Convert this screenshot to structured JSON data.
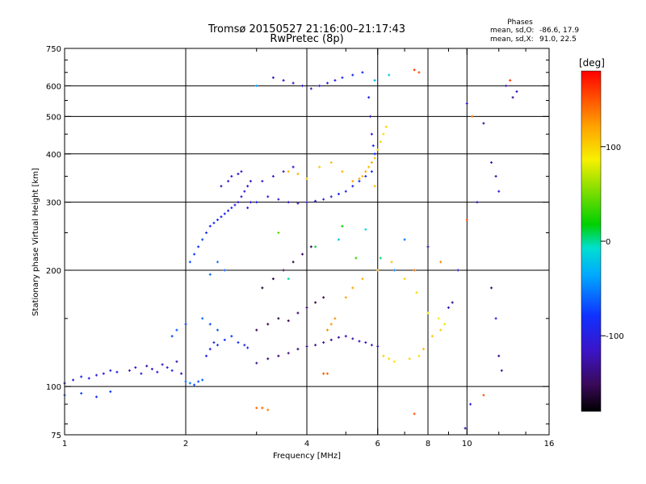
{
  "chart_data": {
    "type": "scatter",
    "title": "Tromsø 20150527 21:16:00–21:17:43",
    "subtitle": "RwPretec (8p)",
    "xlabel": "Frequency [MHz]",
    "ylabel": "Stationary phase Virtual Height [km]",
    "x_scale": "log",
    "y_scale": "log",
    "xlim": [
      1,
      16
    ],
    "ylim": [
      75,
      750
    ],
    "x_ticks": [
      1,
      2,
      4,
      6,
      8,
      10,
      16
    ],
    "x_minor_ticks": [
      3,
      5,
      7,
      9,
      12,
      14
    ],
    "y_ticks": [
      75,
      100,
      200,
      300,
      400,
      500,
      600,
      750
    ],
    "y_minor_ticks": [
      80,
      90,
      150,
      250,
      350,
      450,
      550,
      650,
      700
    ],
    "x_gridlines": [
      2,
      4,
      6,
      8,
      10
    ],
    "y_gridlines": [
      100,
      200,
      300,
      400,
      500,
      600
    ],
    "grid": true,
    "stats": {
      "heading": "Phases",
      "o_label": "mean, sd,O:",
      "o_values": "-86.6, 17.9",
      "x_label": "mean, sd,X:",
      "x_values": " 91.0, 22.5"
    },
    "colorbar": {
      "label": "[deg]",
      "ticks": [
        100,
        0,
        -100
      ],
      "range": [
        -180,
        180
      ],
      "colormap": "rainbow (black-purple-blue-cyan-green-yellow-orange-red)",
      "placement": "right"
    },
    "series": [
      {
        "name": "",
        "points": [
          [
            1.0,
            102,
            -105
          ],
          [
            1.05,
            104,
            -100
          ],
          [
            1.1,
            106,
            -95
          ],
          [
            1.15,
            105,
            -102
          ],
          [
            1.2,
            107,
            -98
          ],
          [
            1.25,
            108,
            -110
          ],
          [
            1.3,
            110,
            -104
          ],
          [
            1.35,
            109,
            -96
          ],
          [
            1.0,
            95,
            -60
          ],
          [
            1.1,
            96,
            -70
          ],
          [
            1.2,
            94,
            -80
          ],
          [
            1.3,
            97,
            -75
          ],
          [
            1.45,
            110,
            -120
          ],
          [
            1.5,
            112,
            -110
          ],
          [
            1.55,
            108,
            -100
          ],
          [
            1.6,
            113,
            -125
          ],
          [
            1.65,
            111,
            -115
          ],
          [
            1.7,
            109,
            -105
          ],
          [
            1.75,
            114,
            -118
          ],
          [
            1.8,
            112,
            -108
          ],
          [
            1.85,
            110,
            -95
          ],
          [
            1.9,
            116,
            -122
          ],
          [
            1.95,
            108,
            -112
          ],
          [
            2.0,
            103,
            -60
          ],
          [
            2.05,
            102,
            -55
          ],
          [
            2.1,
            101,
            -70
          ],
          [
            2.15,
            103,
            -65
          ],
          [
            2.2,
            104,
            -62
          ],
          [
            2.25,
            120,
            -100
          ],
          [
            2.3,
            125,
            -95
          ],
          [
            2.35,
            130,
            -90
          ],
          [
            2.4,
            128,
            -85
          ],
          [
            2.5,
            132,
            -80
          ],
          [
            2.6,
            135,
            -75
          ],
          [
            2.7,
            130,
            -85
          ],
          [
            2.8,
            128,
            -90
          ],
          [
            2.85,
            126,
            -92
          ],
          [
            2.05,
            210,
            -70
          ],
          [
            2.1,
            220,
            -75
          ],
          [
            2.15,
            230,
            -80
          ],
          [
            2.2,
            240,
            -72
          ],
          [
            2.25,
            250,
            -85
          ],
          [
            2.3,
            260,
            -88
          ],
          [
            2.35,
            265,
            -90
          ],
          [
            2.4,
            270,
            -82
          ],
          [
            2.45,
            275,
            -95
          ],
          [
            2.5,
            280,
            -92
          ],
          [
            2.55,
            285,
            -98
          ],
          [
            2.6,
            290,
            -100
          ],
          [
            2.65,
            295,
            -104
          ],
          [
            2.7,
            300,
            -110
          ],
          [
            2.75,
            310,
            -115
          ],
          [
            2.8,
            320,
            -112
          ],
          [
            2.85,
            330,
            -118
          ],
          [
            2.9,
            340,
            -120
          ],
          [
            2.9,
            300,
            -105
          ],
          [
            2.85,
            290,
            -110
          ],
          [
            2.2,
            150,
            -60
          ],
          [
            2.3,
            145,
            -70
          ],
          [
            2.4,
            140,
            -65
          ],
          [
            1.85,
            135,
            -70
          ],
          [
            1.9,
            140,
            -65
          ],
          [
            2.0,
            145,
            -75
          ],
          [
            2.5,
            200,
            -60
          ],
          [
            2.4,
            210,
            -55
          ],
          [
            2.3,
            195,
            -62
          ],
          [
            2.6,
            350,
            -110
          ],
          [
            2.45,
            330,
            -115
          ],
          [
            2.55,
            340,
            -108
          ],
          [
            2.7,
            355,
            -120
          ],
          [
            2.75,
            360,
            -112
          ],
          [
            3.0,
            115,
            -130
          ],
          [
            3.2,
            118,
            -135
          ],
          [
            3.4,
            120,
            -140
          ],
          [
            3.6,
            122,
            -138
          ],
          [
            3.8,
            125,
            -142
          ],
          [
            4.0,
            127,
            -136
          ],
          [
            4.2,
            128,
            -134
          ],
          [
            4.4,
            130,
            -130
          ],
          [
            4.6,
            132,
            -128
          ],
          [
            4.8,
            134,
            -125
          ],
          [
            5.0,
            135,
            -122
          ],
          [
            5.2,
            133,
            -120
          ],
          [
            5.4,
            131,
            -118
          ],
          [
            5.6,
            130,
            -115
          ],
          [
            5.8,
            128,
            -112
          ],
          [
            6.0,
            127,
            -110
          ],
          [
            3.0,
            140,
            -150
          ],
          [
            3.2,
            145,
            -155
          ],
          [
            3.4,
            150,
            -160
          ],
          [
            3.6,
            148,
            -150
          ],
          [
            3.8,
            155,
            -145
          ],
          [
            4.0,
            160,
            -140
          ],
          [
            4.2,
            165,
            -152
          ],
          [
            4.4,
            170,
            -148
          ],
          [
            3.1,
            180,
            -160
          ],
          [
            3.3,
            190,
            -155
          ],
          [
            3.5,
            200,
            -150
          ],
          [
            3.7,
            210,
            -158
          ],
          [
            3.9,
            220,
            -145
          ],
          [
            4.1,
            230,
            -150
          ],
          [
            3.0,
            300,
            -100
          ],
          [
            3.2,
            310,
            -105
          ],
          [
            3.4,
            305,
            -110
          ],
          [
            3.6,
            300,
            -115
          ],
          [
            3.8,
            298,
            -118
          ],
          [
            4.0,
            300,
            -112
          ],
          [
            4.2,
            302,
            -108
          ],
          [
            4.4,
            305,
            -104
          ],
          [
            4.6,
            310,
            -100
          ],
          [
            4.8,
            315,
            -96
          ],
          [
            5.0,
            320,
            -92
          ],
          [
            5.2,
            330,
            -90
          ],
          [
            5.4,
            340,
            -88
          ],
          [
            5.6,
            350,
            -85
          ],
          [
            5.8,
            360,
            -82
          ],
          [
            3.1,
            340,
            -110
          ],
          [
            3.3,
            350,
            -115
          ],
          [
            3.5,
            360,
            -112
          ],
          [
            3.7,
            370,
            -108
          ],
          [
            3.3,
            630,
            -120
          ],
          [
            3.5,
            620,
            -115
          ],
          [
            3.7,
            610,
            -110
          ],
          [
            3.9,
            600,
            -112
          ],
          [
            4.1,
            590,
            -108
          ],
          [
            4.3,
            600,
            -104
          ],
          [
            4.5,
            610,
            -100
          ],
          [
            4.7,
            620,
            -96
          ],
          [
            4.9,
            630,
            -92
          ],
          [
            5.2,
            640,
            -88
          ],
          [
            5.5,
            650,
            -90
          ],
          [
            5.7,
            560,
            -100
          ],
          [
            5.75,
            500,
            -110
          ],
          [
            5.8,
            450,
            -105
          ],
          [
            5.85,
            420,
            -95
          ],
          [
            5.9,
            400,
            -90
          ],
          [
            3.6,
            360,
            110
          ],
          [
            3.8,
            355,
            115
          ],
          [
            4.0,
            345,
            108
          ],
          [
            4.3,
            370,
            105
          ],
          [
            4.6,
            380,
            110
          ],
          [
            4.9,
            360,
            115
          ],
          [
            5.2,
            340,
            120
          ],
          [
            5.5,
            350,
            112
          ],
          [
            5.7,
            370,
            108
          ],
          [
            5.9,
            390,
            104
          ],
          [
            6.0,
            410,
            100
          ],
          [
            6.1,
            430,
            98
          ],
          [
            5.8,
            380,
            118
          ],
          [
            5.6,
            360,
            120
          ],
          [
            5.4,
            345,
            116
          ],
          [
            6.2,
            450,
            95
          ],
          [
            6.3,
            470,
            100
          ],
          [
            5.9,
            330,
            110
          ],
          [
            4.5,
            140,
            130
          ],
          [
            4.6,
            145,
            125
          ],
          [
            4.7,
            150,
            128
          ],
          [
            5.0,
            170,
            120
          ],
          [
            5.2,
            180,
            118
          ],
          [
            5.5,
            190,
            115
          ],
          [
            6.0,
            200,
            110
          ],
          [
            6.5,
            210,
            108
          ],
          [
            7.0,
            190,
            100
          ],
          [
            7.5,
            175,
            95
          ],
          [
            8.0,
            155,
            90
          ],
          [
            8.5,
            150,
            85
          ],
          [
            8.8,
            145,
            80
          ],
          [
            9.0,
            160,
            -120
          ],
          [
            9.2,
            165,
            -130
          ],
          [
            8.6,
            140,
            100
          ],
          [
            8.2,
            135,
            105
          ],
          [
            7.8,
            125,
            110
          ],
          [
            6.2,
            120,
            100
          ],
          [
            6.4,
            118,
            95
          ],
          [
            6.6,
            116,
            92
          ],
          [
            7.2,
            118,
            98
          ],
          [
            7.6,
            120,
            96
          ],
          [
            3.0,
            88,
            140
          ],
          [
            3.1,
            88,
            145
          ],
          [
            3.2,
            87,
            135
          ],
          [
            4.4,
            108,
            150
          ],
          [
            4.5,
            108,
            145
          ],
          [
            7.4,
            85,
            150
          ],
          [
            7.6,
            650,
            150
          ],
          [
            10.0,
            540,
            -110
          ],
          [
            10.3,
            500,
            140
          ],
          [
            11.0,
            480,
            -130
          ],
          [
            11.5,
            380,
            -120
          ],
          [
            11.8,
            350,
            -125
          ],
          [
            12.0,
            320,
            -115
          ],
          [
            11.5,
            180,
            -140
          ],
          [
            11.8,
            150,
            -100
          ],
          [
            12.0,
            120,
            -135
          ],
          [
            12.2,
            110,
            -125
          ],
          [
            12.5,
            600,
            -120
          ],
          [
            13.0,
            560,
            -130
          ],
          [
            13.3,
            580,
            -110
          ],
          [
            12.8,
            620,
            160
          ],
          [
            10.2,
            90,
            -100
          ],
          [
            9.9,
            78,
            -120
          ],
          [
            11.0,
            95,
            150
          ],
          [
            3.6,
            190,
            0
          ],
          [
            4.2,
            230,
            10
          ],
          [
            4.8,
            240,
            -20
          ],
          [
            5.3,
            215,
            30
          ],
          [
            4.9,
            260,
            20
          ],
          [
            5.6,
            255,
            -10
          ],
          [
            6.1,
            215,
            5
          ],
          [
            3.4,
            250,
            40
          ],
          [
            3.0,
            600,
            -40
          ],
          [
            5.9,
            620,
            -30
          ],
          [
            6.4,
            640,
            -20
          ],
          [
            7.4,
            660,
            160
          ],
          [
            6.6,
            200,
            -50
          ],
          [
            7.0,
            240,
            -55
          ],
          [
            7.4,
            200,
            140
          ],
          [
            8.0,
            230,
            -130
          ],
          [
            8.6,
            210,
            130
          ],
          [
            9.5,
            200,
            -110
          ],
          [
            10.0,
            270,
            150
          ],
          [
            10.6,
            300,
            -120
          ]
        ]
      }
    ]
  }
}
